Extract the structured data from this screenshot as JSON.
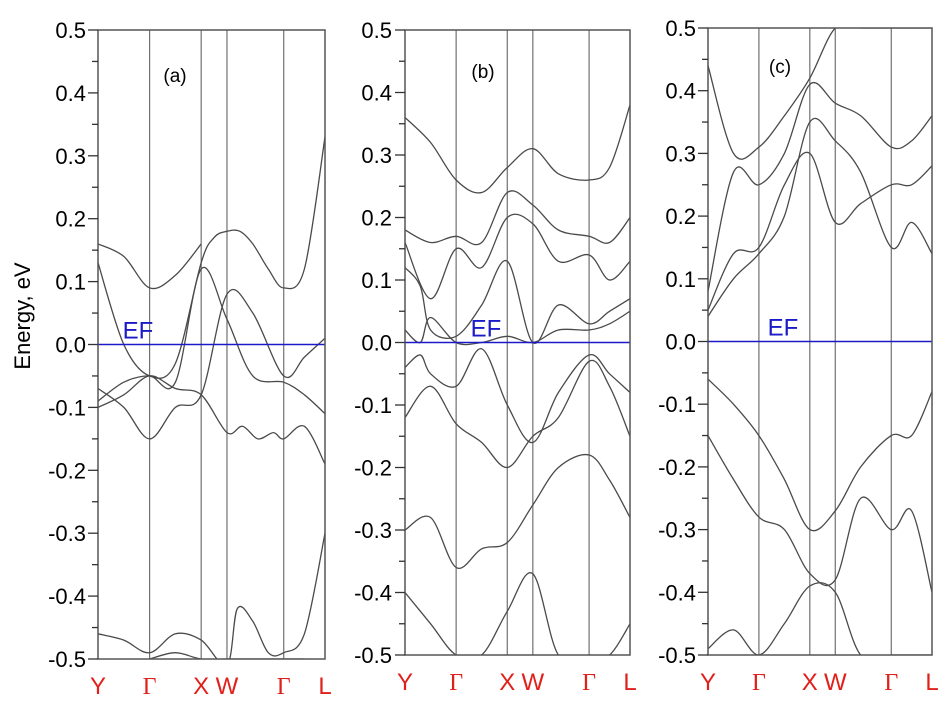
{
  "chart_data": [
    {
      "type": "line",
      "panel_label": "(a)",
      "ylabel": "Energy, eV",
      "ylim": [
        -0.5,
        0.5
      ],
      "yticks": [
        "0.5",
        "0.4",
        "0.3",
        "0.2",
        "0.1",
        "0.0",
        "-0.1",
        "-0.2",
        "-0.3",
        "-0.4",
        "-0.5"
      ],
      "kpoints": [
        {
          "label": "Y",
          "pos": 0.0,
          "greek": false
        },
        {
          "label": "Γ",
          "pos": 1.0,
          "greek": true
        },
        {
          "label": "X",
          "pos": 2.0,
          "greek": false
        },
        {
          "label": "W",
          "pos": 2.5,
          "greek": false
        },
        {
          "label": "Γ",
          "pos": 3.6,
          "greek": true
        },
        {
          "label": "L",
          "pos": 4.4,
          "greek": false
        }
      ],
      "fermi": {
        "label": "EF",
        "energy": 0.0
      },
      "bands": [
        {
          "x": [
            0,
            0.5,
            1.0,
            1.5,
            2.0
          ],
          "y": [
            0.16,
            0.14,
            0.09,
            0.11,
            0.16
          ]
        },
        {
          "x": [
            0,
            0.5,
            1.0,
            1.5,
            2.0,
            2.25,
            2.5,
            2.75,
            3.0,
            3.3,
            3.6,
            4.0,
            4.4
          ],
          "y": [
            0.13,
            0.0,
            -0.05,
            -0.03,
            0.13,
            0.17,
            0.18,
            0.18,
            0.16,
            0.12,
            0.09,
            0.12,
            0.33
          ]
        },
        {
          "x": [
            0,
            0.5,
            1.0,
            1.5,
            2.0,
            2.5,
            3.0,
            3.6,
            4.0,
            4.4
          ],
          "y": [
            -0.07,
            -0.1,
            -0.15,
            -0.1,
            -0.08,
            0.08,
            0.05,
            -0.05,
            -0.02,
            0.01
          ]
        },
        {
          "x": [
            0,
            0.5,
            1.0,
            1.5,
            2.0,
            2.5,
            3.0,
            3.6,
            4.0,
            4.4
          ],
          "y": [
            -0.09,
            -0.06,
            -0.05,
            -0.06,
            0.12,
            0.04,
            -0.05,
            -0.06,
            -0.08,
            -0.11
          ]
        },
        {
          "x": [
            0,
            0.5,
            1.0,
            1.5,
            2.0,
            2.5,
            2.8,
            3.1,
            3.4,
            3.6,
            4.0,
            4.4
          ],
          "y": [
            -0.1,
            -0.08,
            -0.05,
            -0.07,
            -0.08,
            -0.14,
            -0.13,
            -0.15,
            -0.14,
            -0.15,
            -0.13,
            -0.19
          ]
        },
        {
          "x": [
            0,
            0.5,
            1.0,
            1.5,
            2.0,
            2.5,
            2.7,
            3.0,
            3.3,
            3.6,
            4.0,
            4.4
          ],
          "y": [
            -0.46,
            -0.47,
            -0.49,
            -0.46,
            -0.47,
            -0.51,
            -0.42,
            -0.44,
            -0.49,
            -0.49,
            -0.46,
            -0.3
          ]
        },
        {
          "x": [
            1.0,
            1.5,
            2.0,
            2.5,
            3.6,
            4.0
          ],
          "y": [
            -0.5,
            -0.49,
            -0.5,
            -0.5,
            -0.5,
            -0.5
          ]
        }
      ]
    },
    {
      "type": "line",
      "panel_label": "(b)",
      "ylim": [
        -0.5,
        0.5
      ],
      "yticks": [
        "0.5",
        "0.4",
        "0.3",
        "0.2",
        "0.1",
        "0.0",
        "-0.1",
        "-0.2",
        "-0.3",
        "-0.4",
        "-0.5"
      ],
      "kpoints": [
        {
          "label": "Y",
          "pos": 0.0,
          "greek": false
        },
        {
          "label": "Γ",
          "pos": 1.0,
          "greek": true
        },
        {
          "label": "X",
          "pos": 2.0,
          "greek": false
        },
        {
          "label": "W",
          "pos": 2.5,
          "greek": false
        },
        {
          "label": "Γ",
          "pos": 3.6,
          "greek": true
        },
        {
          "label": "L",
          "pos": 4.4,
          "greek": false
        }
      ],
      "fermi": {
        "label": "EF",
        "energy": 0.0
      },
      "bands": [
        {
          "x": [
            0,
            0.5,
            1.0,
            1.5,
            2.0,
            2.5,
            3.0,
            3.6,
            4.0,
            4.4
          ],
          "y": [
            0.36,
            0.32,
            0.26,
            0.24,
            0.28,
            0.31,
            0.27,
            0.26,
            0.28,
            0.38
          ]
        },
        {
          "x": [
            0,
            0.5,
            1.0,
            1.5,
            2.0,
            2.5,
            3.0,
            3.6,
            4.0,
            4.4
          ],
          "y": [
            0.18,
            0.16,
            0.17,
            0.16,
            0.24,
            0.22,
            0.18,
            0.17,
            0.16,
            0.2
          ]
        },
        {
          "x": [
            0,
            0.5,
            1.0,
            1.5,
            2.0,
            2.5,
            3.0,
            3.6,
            4.0,
            4.4
          ],
          "y": [
            0.16,
            0.07,
            0.15,
            0.12,
            0.2,
            0.19,
            0.13,
            0.14,
            0.1,
            0.13
          ]
        },
        {
          "x": [
            0,
            0.3,
            0.5,
            1.0,
            1.5,
            2.0,
            2.5,
            3.0,
            3.6,
            4.0,
            4.4
          ],
          "y": [
            0.12,
            0.09,
            0.02,
            0.01,
            0.06,
            0.13,
            0.0,
            0.06,
            0.03,
            0.05,
            0.07
          ]
        },
        {
          "x": [
            0,
            0.3,
            0.5,
            1.0,
            1.5,
            2.0,
            2.5,
            3.0,
            3.6,
            4.0,
            4.4
          ],
          "y": [
            0.02,
            0.0,
            0.04,
            0.0,
            0.0,
            0.01,
            0.0,
            0.02,
            0.02,
            0.03,
            0.05
          ]
        },
        {
          "x": [
            0,
            0.3,
            0.5,
            1.0,
            1.5,
            2.0,
            2.5,
            3.0,
            3.6,
            4.0,
            4.4
          ],
          "y": [
            -0.04,
            -0.02,
            -0.05,
            -0.07,
            -0.01,
            -0.1,
            -0.16,
            -0.08,
            -0.02,
            -0.05,
            -0.08
          ]
        },
        {
          "x": [
            0,
            0.5,
            1.0,
            1.5,
            2.0,
            2.5,
            3.0,
            3.6,
            4.0,
            4.4
          ],
          "y": [
            -0.12,
            -0.07,
            -0.13,
            -0.16,
            -0.2,
            -0.15,
            -0.12,
            -0.03,
            -0.07,
            -0.15
          ]
        },
        {
          "x": [
            0,
            0.5,
            1.0,
            1.5,
            2.0,
            2.5,
            3.0,
            3.6,
            4.0,
            4.4
          ],
          "y": [
            -0.3,
            -0.28,
            -0.36,
            -0.33,
            -0.32,
            -0.26,
            -0.2,
            -0.18,
            -0.22,
            -0.28
          ]
        },
        {
          "x": [
            0,
            0.5,
            1.0,
            1.5,
            2.0,
            2.5,
            3.0,
            3.6,
            4.0,
            4.4
          ],
          "y": [
            -0.4,
            -0.45,
            -0.5,
            -0.5,
            -0.43,
            -0.37,
            -0.5,
            -0.5,
            -0.5,
            -0.45
          ]
        }
      ]
    },
    {
      "type": "line",
      "panel_label": "(c)",
      "ylim": [
        -0.5,
        0.5
      ],
      "yticks": [
        "0.5",
        "0.4",
        "0.3",
        "0.2",
        "0.1",
        "0.0",
        "-0.1",
        "-0.2",
        "-0.3",
        "-0.4",
        "-0.5"
      ],
      "kpoints": [
        {
          "label": "Y",
          "pos": 0.0,
          "greek": false
        },
        {
          "label": "Γ",
          "pos": 1.0,
          "greek": true
        },
        {
          "label": "X",
          "pos": 2.0,
          "greek": false
        },
        {
          "label": "W",
          "pos": 2.5,
          "greek": false
        },
        {
          "label": "Γ",
          "pos": 3.6,
          "greek": true
        },
        {
          "label": "L",
          "pos": 4.4,
          "greek": false
        }
      ],
      "fermi": {
        "label": "EF",
        "energy": 0.0
      },
      "bands": [
        {
          "x": [
            0,
            0.5,
            1.0,
            1.5,
            2.0,
            2.5,
            3.0,
            3.6,
            4.0,
            4.4
          ],
          "y": [
            0.44,
            0.3,
            0.31,
            0.36,
            0.42,
            0.5,
            0.5,
            0.5,
            0.5,
            0.5
          ]
        },
        {
          "x": [
            0,
            0.5,
            1.0,
            1.5,
            2.0,
            2.5,
            3.0,
            3.6,
            4.0,
            4.4
          ],
          "y": [
            0.08,
            0.27,
            0.25,
            0.3,
            0.41,
            0.38,
            0.36,
            0.31,
            0.32,
            0.36
          ]
        },
        {
          "x": [
            0,
            0.5,
            1.0,
            1.5,
            2.0,
            2.5,
            3.0,
            3.6,
            4.0,
            4.4
          ],
          "y": [
            0.05,
            0.14,
            0.15,
            0.25,
            0.3,
            0.19,
            0.22,
            0.25,
            0.25,
            0.28
          ]
        },
        {
          "x": [
            0,
            0.5,
            1.0,
            1.5,
            2.0,
            2.5,
            3.0,
            3.6,
            4.0,
            4.4
          ],
          "y": [
            0.04,
            0.1,
            0.14,
            0.2,
            0.35,
            0.32,
            0.27,
            0.15,
            0.19,
            0.14
          ]
        },
        {
          "x": [
            0,
            0.5,
            1.0,
            1.5,
            2.0,
            2.5,
            3.0,
            3.6,
            4.0,
            4.4
          ],
          "y": [
            -0.06,
            -0.1,
            -0.15,
            -0.22,
            -0.3,
            -0.27,
            -0.2,
            -0.15,
            -0.15,
            -0.08
          ]
        },
        {
          "x": [
            0,
            0.5,
            1.0,
            1.5,
            2.0,
            2.5,
            3.0,
            3.6,
            4.0,
            4.4
          ],
          "y": [
            -0.15,
            -0.22,
            -0.28,
            -0.3,
            -0.37,
            -0.38,
            -0.25,
            -0.3,
            -0.27,
            -0.4
          ]
        },
        {
          "x": [
            0,
            0.5,
            1.0,
            1.5,
            2.0,
            2.5,
            3.0,
            3.6,
            4.0,
            4.4
          ],
          "y": [
            -0.49,
            -0.46,
            -0.5,
            -0.45,
            -0.39,
            -0.4,
            -0.5,
            -0.5,
            -0.5,
            -0.5
          ]
        }
      ]
    }
  ]
}
